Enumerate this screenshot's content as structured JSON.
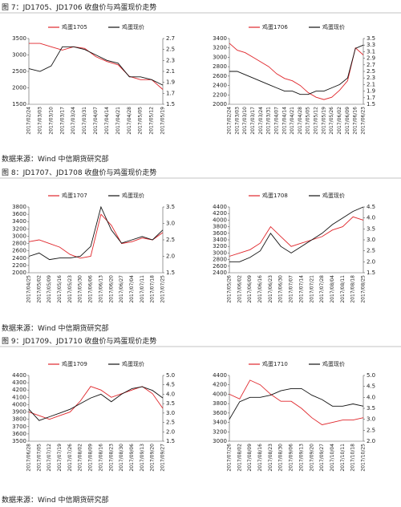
{
  "figures": [
    {
      "title": "图 7：JD1705、JD1706 收盘价与鸡蛋现价走势",
      "source": "数据来源：Wind  中信期货研究部"
    },
    {
      "title": "图 8：JD1707、JD1708 收盘价与鸡蛋现价走势",
      "source": "数据来源：Wind  中信期货研究部"
    },
    {
      "title": "图 9：JD1709、JD1710 收盘价与鸡蛋现价走势",
      "source": "数据来源：Wind  中信期货研究部"
    }
  ],
  "chart_data": [
    {
      "type": "line",
      "categories": [
        "2017/02/24",
        "2017/03/03",
        "2017/03/10",
        "2017/03/17",
        "2017/03/24",
        "2017/03/31",
        "2017/04/07",
        "2017/04/14",
        "2017/04/21",
        "2017/04/28",
        "2017/05/05",
        "2017/05/12",
        "2017/05/19"
      ],
      "series": [
        {
          "name": "鸡蛋1705",
          "color": "#e0262b",
          "values": [
            3350,
            3350,
            3250,
            3150,
            3250,
            3200,
            2950,
            2800,
            2700,
            2350,
            2250,
            2250,
            1950
          ]
        },
        {
          "name": "鸡蛋现价",
          "color": "#111111",
          "axis": "y2",
          "values": [
            2.15,
            2.1,
            2.2,
            2.55,
            2.55,
            2.5,
            2.4,
            2.3,
            2.25,
            2.0,
            2.0,
            1.95,
            1.85
          ]
        }
      ],
      "ylim": [
        1500,
        3500
      ],
      "yticks": [
        1500,
        2000,
        2500,
        3000,
        3500
      ],
      "y2lim": [
        1.5,
        2.7
      ],
      "y2ticks": [
        1.5,
        1.7,
        1.9,
        2.1,
        2.3,
        2.5,
        2.7
      ]
    },
    {
      "type": "line",
      "categories": [
        "2017/02/24",
        "2017/03/03",
        "2017/03/10",
        "2017/03/17",
        "2017/03/24",
        "2017/03/31",
        "2017/04/07",
        "2017/04/14",
        "2017/04/21",
        "2017/04/28",
        "2017/05/05",
        "2017/05/12",
        "2017/05/19",
        "2017/05/26",
        "2017/06/02",
        "2017/06/09",
        "2017/06/16",
        "2017/06/23"
      ],
      "series": [
        {
          "name": "鸡蛋1706",
          "color": "#e0262b",
          "values": [
            3300,
            3150,
            3100,
            3000,
            2900,
            2800,
            2650,
            2550,
            2500,
            2400,
            2250,
            2150,
            2100,
            2150,
            2300,
            2500,
            3200,
            3050
          ]
        },
        {
          "name": "鸡蛋现价",
          "color": "#111111",
          "axis": "y2",
          "values": [
            2.5,
            2.5,
            2.4,
            2.3,
            2.2,
            2.1,
            2.0,
            1.9,
            1.9,
            1.8,
            1.8,
            1.9,
            1.9,
            2.0,
            2.1,
            2.3,
            3.2,
            3.3
          ]
        }
      ],
      "ylim": [
        2000,
        3400
      ],
      "yticks": [
        2000,
        2200,
        2400,
        2600,
        2800,
        3000,
        3200,
        3400
      ],
      "y2lim": [
        1.5,
        3.5
      ],
      "y2ticks": [
        1.5,
        1.7,
        1.9,
        2.1,
        2.3,
        2.5,
        2.7,
        2.9,
        3.1,
        3.3,
        3.5
      ]
    },
    {
      "type": "line",
      "categories": [
        "2017/04/25",
        "2017/05/02",
        "2017/05/09",
        "2017/05/16",
        "2017/05/23",
        "2017/05/30",
        "2017/06/06",
        "2017/06/13",
        "2017/06/20",
        "2017/06/27",
        "2017/07/04",
        "2017/07/11",
        "2017/07/18",
        "2017/07/25"
      ],
      "series": [
        {
          "name": "鸡蛋1707",
          "color": "#e0262b",
          "values": [
            2850,
            2900,
            2800,
            2700,
            2500,
            2400,
            2450,
            3600,
            3300,
            2800,
            2850,
            2950,
            2900,
            3100
          ]
        },
        {
          "name": "鸡蛋现价",
          "color": "#111111",
          "axis": "y2",
          "values": [
            2.0,
            2.1,
            1.9,
            1.95,
            1.95,
            2.0,
            2.3,
            3.5,
            2.8,
            2.4,
            2.5,
            2.6,
            2.5,
            2.8
          ]
        }
      ],
      "ylim": [
        2000,
        3800
      ],
      "yticks": [
        2000,
        2200,
        2400,
        2600,
        2800,
        3000,
        3200,
        3400,
        3600,
        3800
      ],
      "y2lim": [
        1.5,
        3.5
      ],
      "y2ticks": [
        1.5,
        {
          "value": 2,
          "label": "2.0"
        },
        2.5,
        {
          "value": 3,
          "label": "3.0"
        },
        3.5
      ]
    },
    {
      "type": "line",
      "categories": [
        "2017/05/26",
        "2017/06/02",
        "2017/06/09",
        "2017/06/16",
        "2017/06/23",
        "2017/06/30",
        "2017/07/07",
        "2017/07/14",
        "2017/07/21",
        "2017/07/28",
        "2017/08/04",
        "2017/08/11",
        "2017/08/18",
        "2017/08/25"
      ],
      "series": [
        {
          "name": "鸡蛋1708",
          "color": "#e0262b",
          "values": [
            2900,
            3000,
            3100,
            3300,
            3800,
            3500,
            3200,
            3300,
            3400,
            3500,
            3700,
            3800,
            4100,
            4000
          ]
        },
        {
          "name": "鸡蛋现价",
          "color": "#111111",
          "axis": "y2",
          "values": [
            2.0,
            2.0,
            2.2,
            2.5,
            3.3,
            2.7,
            2.4,
            2.7,
            3.0,
            3.3,
            3.7,
            4.0,
            4.3,
            4.5
          ]
        }
      ],
      "ylim": [
        2400,
        4400
      ],
      "yticks": [
        2400,
        2600,
        2800,
        3000,
        3200,
        3400,
        3600,
        3800,
        4000,
        4200,
        4400
      ],
      "y2lim": [
        1.5,
        4.5
      ],
      "y2ticks": [
        1.5,
        {
          "value": 2,
          "label": "2.0"
        },
        2.5,
        {
          "value": 3,
          "label": "3.0"
        },
        3.5,
        {
          "value": 4,
          "label": "4.0"
        },
        4.5
      ]
    },
    {
      "type": "line",
      "categories": [
        "2017/06/28",
        "2017/07/05",
        "2017/07/12",
        "2017/07/19",
        "2017/07/26",
        "2017/08/02",
        "2017/08/09",
        "2017/08/16",
        "2017/08/23",
        "2017/08/30",
        "2017/09/06",
        "2017/09/13",
        "2017/09/20",
        "2017/09/27"
      ],
      "series": [
        {
          "name": "鸡蛋1709",
          "color": "#e0262b",
          "values": [
            3900,
            3850,
            3800,
            3850,
            3900,
            4050,
            4250,
            4200,
            4100,
            4150,
            4200,
            4250,
            4150,
            3950
          ]
        },
        {
          "name": "鸡蛋现价",
          "color": "#111111",
          "axis": "y2",
          "values": [
            3.2,
            2.6,
            2.8,
            3.0,
            3.2,
            3.5,
            3.8,
            4.0,
            3.6,
            4.0,
            4.3,
            4.4,
            4.2,
            3.8
          ]
        }
      ],
      "ylim": [
        3500,
        4400
      ],
      "yticks": [
        3500,
        3600,
        3700,
        3800,
        3900,
        4000,
        4100,
        4200,
        4300,
        4400
      ],
      "y2lim": [
        1.5,
        5
      ],
      "y2ticks": [
        1.5,
        {
          "value": 2,
          "label": "2.0"
        },
        2.5,
        {
          "value": 3,
          "label": "3.0"
        },
        3.5,
        {
          "value": 4,
          "label": "4.0"
        },
        4.5,
        {
          "value": 5,
          "label": "5.0"
        }
      ]
    },
    {
      "type": "line",
      "categories": [
        "2017/07/26",
        "2017/08/02",
        "2017/08/09",
        "2017/08/16",
        "2017/08/23",
        "2017/08/30",
        "2017/09/06",
        "2017/09/13",
        "2017/09/20",
        "2017/09/27",
        "2017/10/04",
        "2017/10/11",
        "2017/10/18",
        "2017/10/25"
      ],
      "series": [
        {
          "name": "鸡蛋1710",
          "color": "#e0262b",
          "values": [
            4000,
            3900,
            4300,
            4200,
            4000,
            3850,
            3850,
            3700,
            3500,
            3350,
            3400,
            3450,
            3450,
            3500
          ]
        },
        {
          "name": "鸡蛋现价",
          "color": "#111111",
          "axis": "y2",
          "values": [
            3.0,
            3.8,
            4.0,
            4.0,
            4.1,
            4.3,
            4.4,
            4.4,
            4.1,
            3.9,
            3.6,
            3.6,
            3.7,
            3.6
          ]
        }
      ],
      "ylim": [
        3000,
        4400
      ],
      "yticks": [
        3000,
        3200,
        3400,
        3600,
        3800,
        4000,
        4200,
        4400
      ],
      "y2lim": [
        2,
        5
      ],
      "y2ticks": [
        {
          "value": 2,
          "label": "2.0"
        },
        2.5,
        {
          "value": 3,
          "label": "3.0"
        },
        3.5,
        {
          "value": 4,
          "label": "4.0"
        },
        4.5,
        {
          "value": 5,
          "label": "5.0"
        }
      ]
    }
  ]
}
